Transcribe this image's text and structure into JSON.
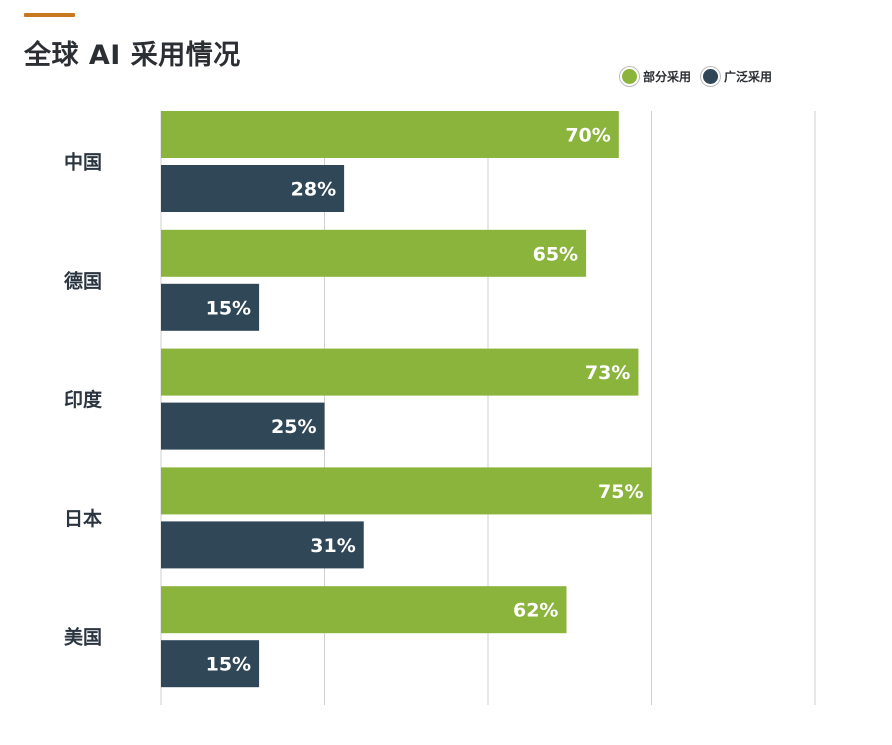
{
  "chart_data": {
    "type": "bar",
    "orientation": "horizontal",
    "title": "全球 AI 采用情况",
    "categories": [
      "中国",
      "德国",
      "印度",
      "日本",
      "美国"
    ],
    "series": [
      {
        "name": "部分采用",
        "color": "#8ab43c",
        "values": [
          70,
          65,
          73,
          75,
          62
        ]
      },
      {
        "name": "广泛采用",
        "color": "#2f4756",
        "values": [
          28,
          15,
          25,
          31,
          15
        ]
      }
    ],
    "value_format": "{v}%",
    "xlim": [
      0,
      100
    ],
    "gridlines": [
      0,
      25,
      50,
      75,
      100
    ],
    "grid": true,
    "legend": "top-right",
    "accent_color": "#c8781e"
  }
}
